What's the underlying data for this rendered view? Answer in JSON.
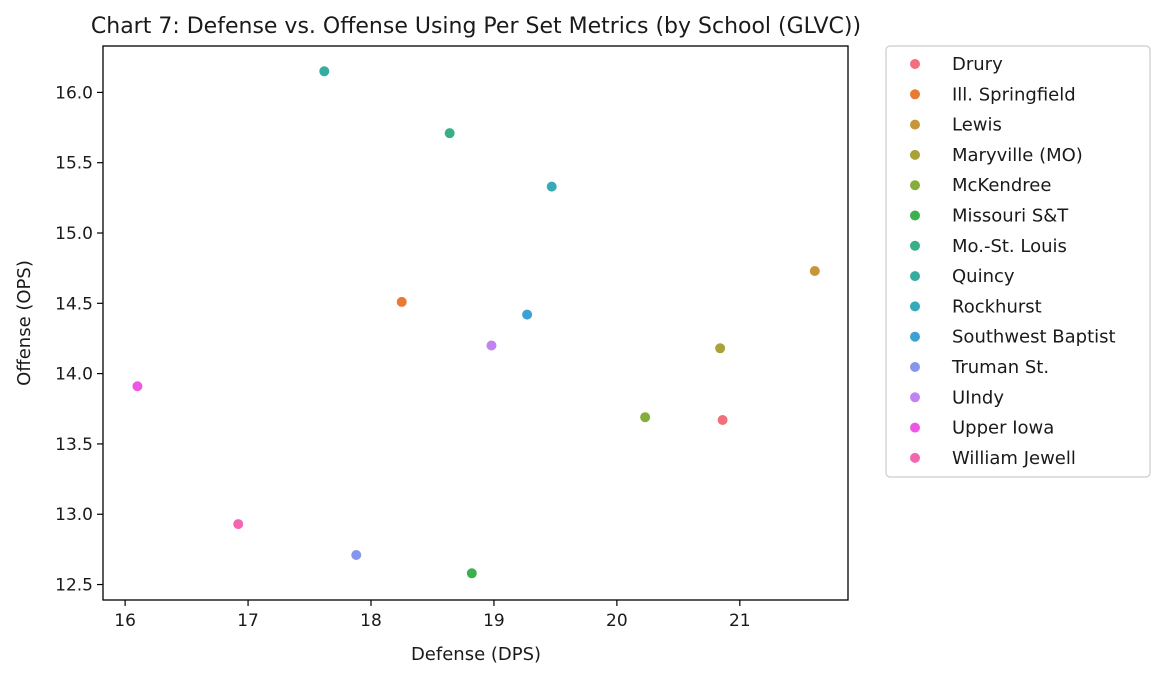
{
  "chart_data": {
    "type": "scatter",
    "title": "Chart 7: Defense vs. Offense Using Per Set Metrics (by School (GLVC))",
    "xlabel": "Defense (DPS)",
    "ylabel": "Offense (OPS)",
    "xlim": [
      15.82,
      21.88
    ],
    "ylim": [
      12.39,
      16.33
    ],
    "xticks": [
      16,
      17,
      18,
      19,
      20,
      21
    ],
    "yticks": [
      12.5,
      13.0,
      13.5,
      14.0,
      14.5,
      15.0,
      15.5,
      16.0
    ],
    "ytick_labels": [
      "12.5",
      "13.0",
      "13.5",
      "14.0",
      "14.5",
      "15.0",
      "15.5",
      "16.0"
    ],
    "grid": false,
    "legend_position": "outside-right",
    "points": [
      {
        "name": "Drury",
        "x": 20.86,
        "y": 13.67,
        "color": "#f2707d"
      },
      {
        "name": "Ill. Springfield",
        "x": 18.25,
        "y": 14.51,
        "color": "#e87a35"
      },
      {
        "name": "Lewis",
        "x": 21.61,
        "y": 14.73,
        "color": "#c8963a"
      },
      {
        "name": "Maryville (MO)",
        "x": 20.84,
        "y": 14.18,
        "color": "#aba13a"
      },
      {
        "name": "McKendree",
        "x": 20.23,
        "y": 13.69,
        "color": "#84ad3a"
      },
      {
        "name": "Missouri S&T",
        "x": 18.82,
        "y": 12.58,
        "color": "#3ab04f"
      },
      {
        "name": "Mo.-St. Louis",
        "x": 18.64,
        "y": 15.71,
        "color": "#37b08a"
      },
      {
        "name": "Quincy",
        "x": 17.62,
        "y": 16.15,
        "color": "#35ac9f"
      },
      {
        "name": "Rockhurst",
        "x": 19.47,
        "y": 15.33,
        "color": "#36aab6"
      },
      {
        "name": "Southwest Baptist",
        "x": 19.27,
        "y": 14.42,
        "color": "#3ba2d3"
      },
      {
        "name": "Truman St.",
        "x": 17.88,
        "y": 12.71,
        "color": "#8596eb"
      },
      {
        "name": "UIndy",
        "x": 18.98,
        "y": 14.2,
        "color": "#c084f2"
      },
      {
        "name": "Upper Iowa",
        "x": 16.1,
        "y": 13.91,
        "color": "#ed56e7"
      },
      {
        "name": "William Jewell",
        "x": 16.92,
        "y": 12.93,
        "color": "#f266b2"
      }
    ]
  }
}
